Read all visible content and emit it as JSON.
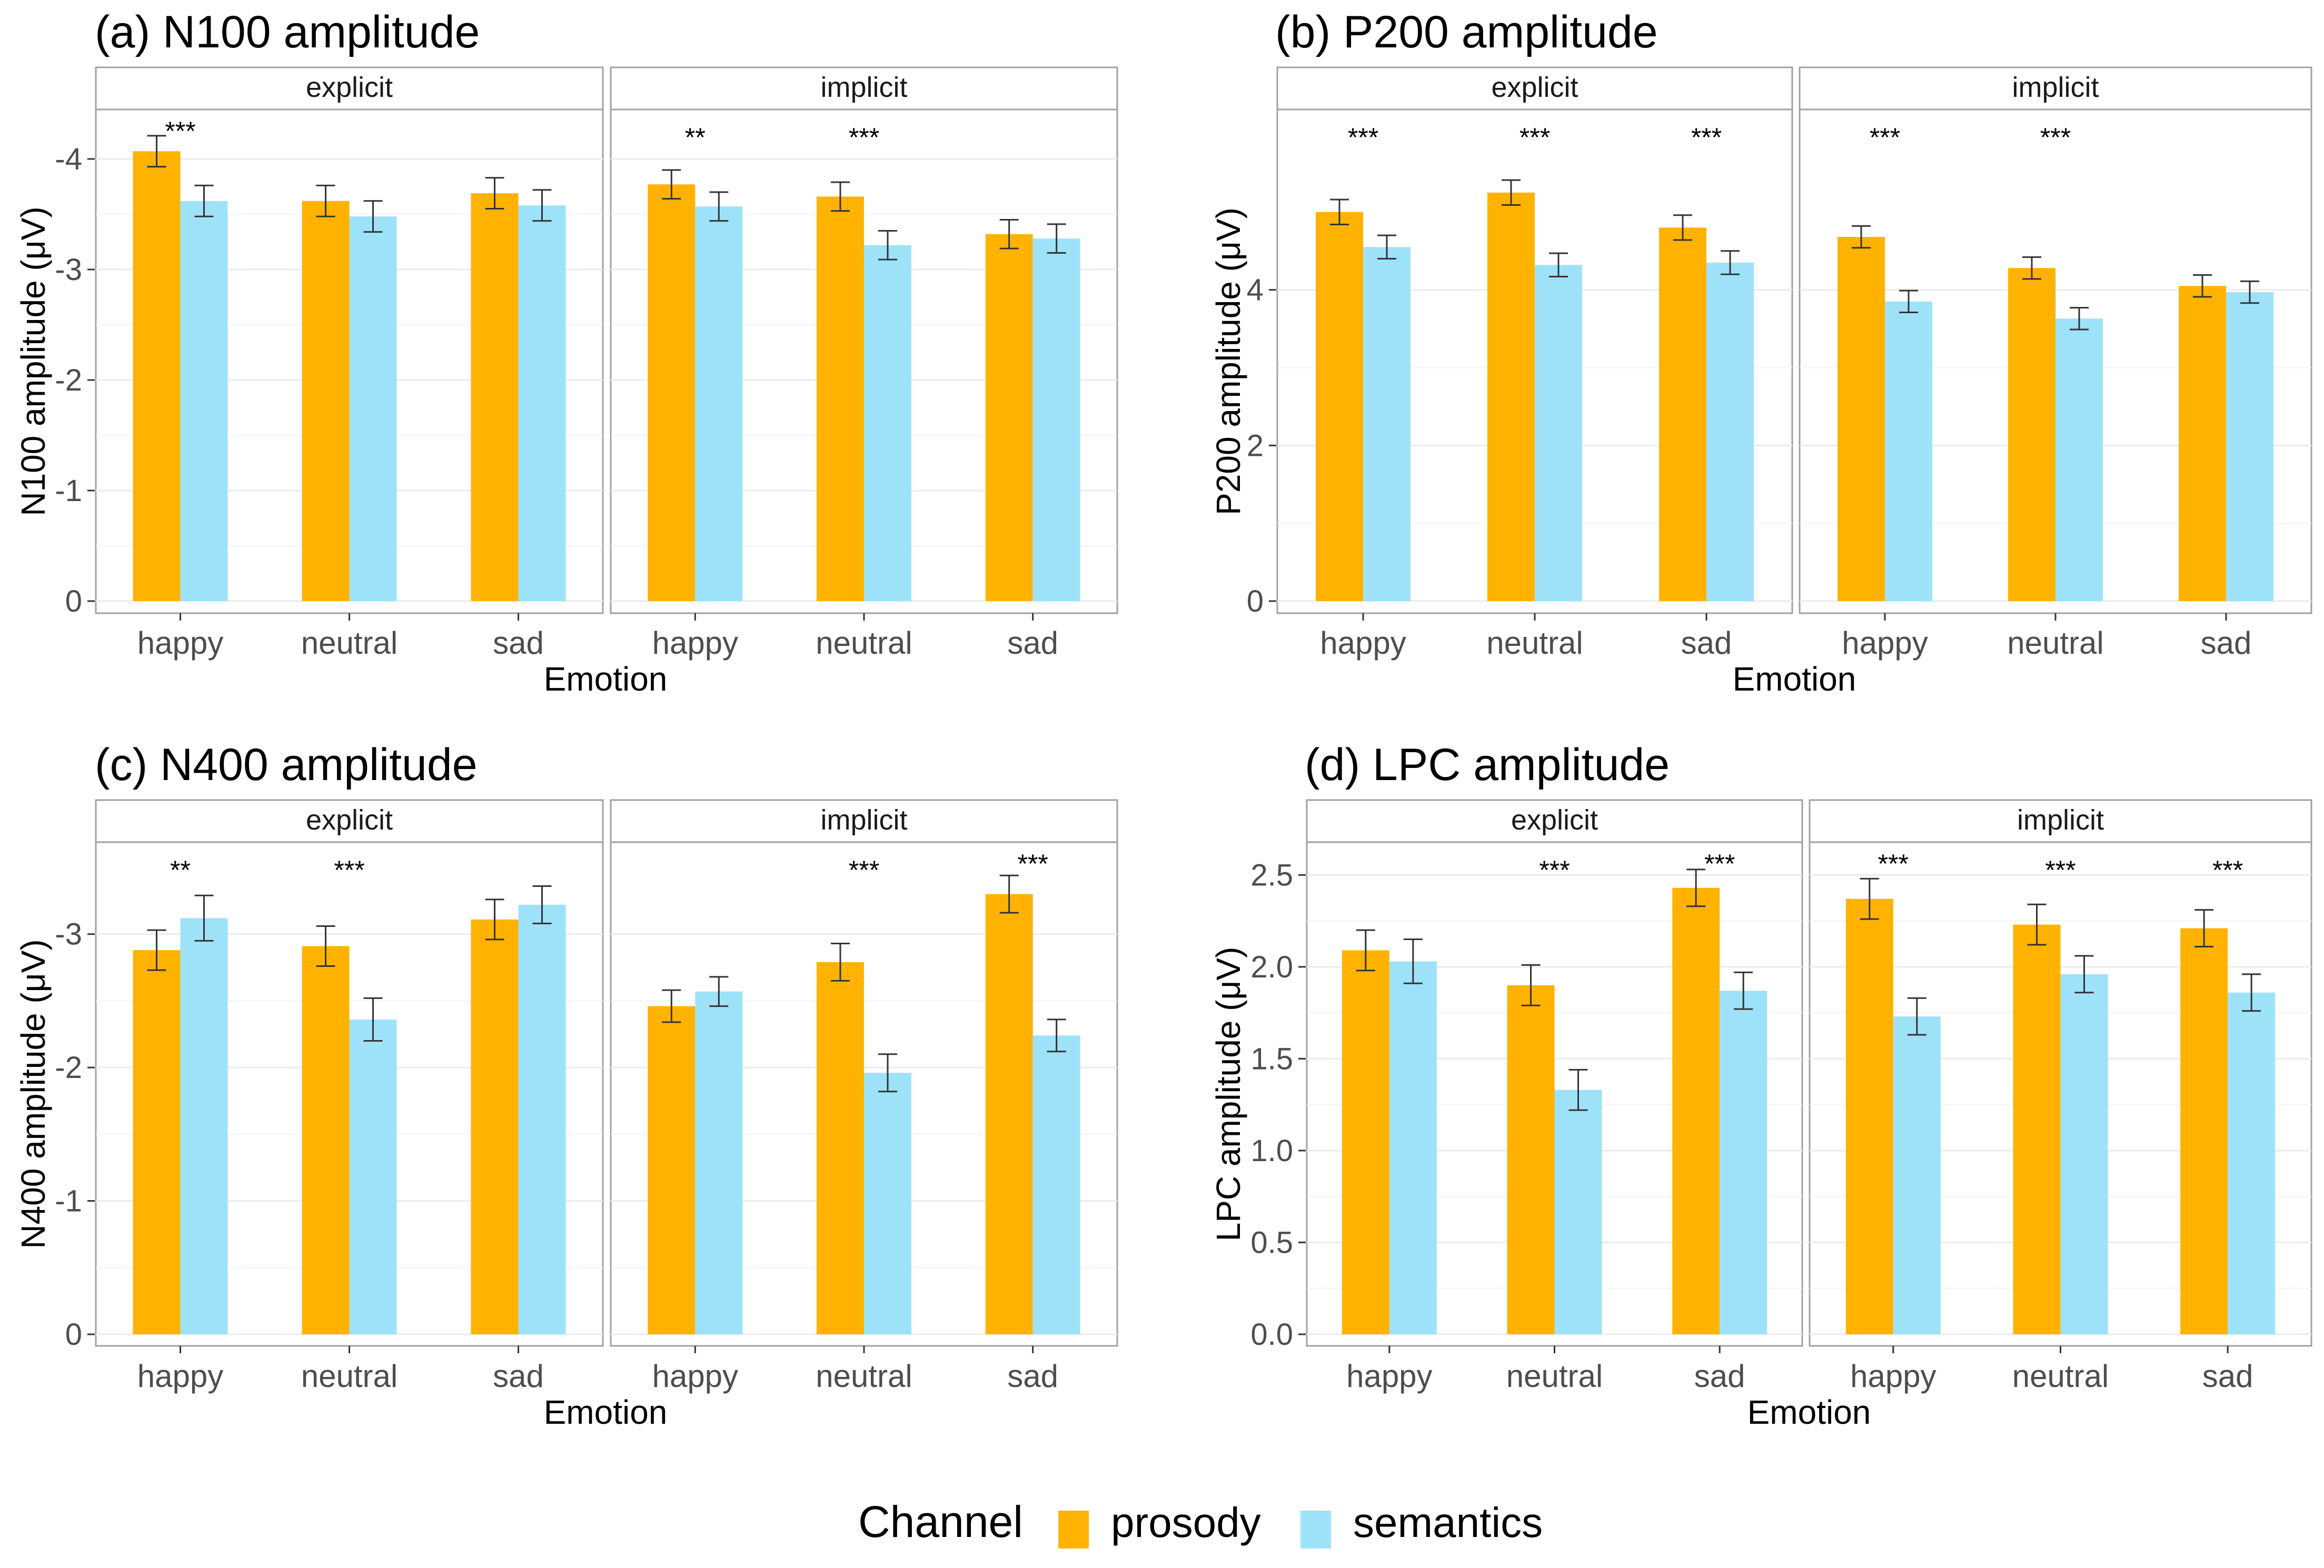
{
  "legend": {
    "title": "Channel",
    "entries": [
      {
        "name": "prosody",
        "color": "#FFB300"
      },
      {
        "name": "semantics",
        "color": "#9EE2FA"
      }
    ]
  },
  "chart_data": [
    {
      "type": "bar",
      "title": "(a) N100 amplitude",
      "xlabel": "Emotion",
      "ylabel": "N100 amplitude (μV)",
      "reversed_y": true,
      "ylim": [
        0,
        -4.4
      ],
      "yticks": [
        0,
        -1,
        -2,
        -3,
        -4
      ],
      "ytick_labels": [
        "0",
        "-1",
        "-2",
        "-3",
        "-4"
      ],
      "facets": [
        {
          "label": "explicit",
          "categories": [
            "happy",
            "neutral",
            "sad"
          ],
          "series": [
            {
              "name": "prosody",
              "values": [
                -4.07,
                -3.62,
                -3.69
              ],
              "errors": [
                0.14,
                0.14,
                0.14
              ]
            },
            {
              "name": "semantics",
              "values": [
                -3.62,
                -3.48,
                -3.58
              ],
              "errors": [
                0.14,
                0.14,
                0.14
              ]
            }
          ],
          "significance": [
            "***",
            "",
            ""
          ]
        },
        {
          "label": "implicit",
          "categories": [
            "happy",
            "neutral",
            "sad"
          ],
          "series": [
            {
              "name": "prosody",
              "values": [
                -3.77,
                -3.66,
                -3.32
              ],
              "errors": [
                0.13,
                0.13,
                0.13
              ]
            },
            {
              "name": "semantics",
              "values": [
                -3.57,
                -3.22,
                -3.28
              ],
              "errors": [
                0.13,
                0.13,
                0.13
              ]
            }
          ],
          "significance": [
            "**",
            "***",
            ""
          ]
        }
      ]
    },
    {
      "type": "bar",
      "title": "(b) P200 amplitude",
      "xlabel": "Emotion",
      "ylabel": "P200 amplitude (μV)",
      "reversed_y": false,
      "ylim": [
        0,
        6.25
      ],
      "yticks": [
        0,
        2,
        4
      ],
      "ytick_labels": [
        "0",
        "2",
        "4"
      ],
      "facets": [
        {
          "label": "explicit",
          "categories": [
            "happy",
            "neutral",
            "sad"
          ],
          "series": [
            {
              "name": "prosody",
              "values": [
                5.0,
                5.25,
                4.8
              ],
              "errors": [
                0.16,
                0.16,
                0.16
              ]
            },
            {
              "name": "semantics",
              "values": [
                4.55,
                4.32,
                4.35
              ],
              "errors": [
                0.15,
                0.15,
                0.15
              ]
            }
          ],
          "significance": [
            "***",
            "***",
            "***"
          ]
        },
        {
          "label": "implicit",
          "categories": [
            "happy",
            "neutral",
            "sad"
          ],
          "series": [
            {
              "name": "prosody",
              "values": [
                4.68,
                4.28,
                4.05
              ],
              "errors": [
                0.14,
                0.14,
                0.14
              ]
            },
            {
              "name": "semantics",
              "values": [
                3.85,
                3.63,
                3.97
              ],
              "errors": [
                0.14,
                0.14,
                0.14
              ]
            }
          ],
          "significance": [
            "***",
            "***",
            ""
          ]
        }
      ]
    },
    {
      "type": "bar",
      "title": "(c) N400 amplitude",
      "xlabel": "Emotion",
      "ylabel": "N400 amplitude (μV)",
      "reversed_y": true,
      "ylim": [
        0,
        -3.65
      ],
      "yticks": [
        0,
        -1,
        -2,
        -3
      ],
      "ytick_labels": [
        "0",
        "-1",
        "-2",
        "-3"
      ],
      "facets": [
        {
          "label": "explicit",
          "categories": [
            "happy",
            "neutral",
            "sad"
          ],
          "series": [
            {
              "name": "prosody",
              "values": [
                -2.88,
                -2.91,
                -3.11
              ],
              "errors": [
                0.15,
                0.15,
                0.15
              ]
            },
            {
              "name": "semantics",
              "values": [
                -3.12,
                -2.36,
                -3.22
              ],
              "errors": [
                0.17,
                0.16,
                0.14
              ]
            }
          ],
          "significance": [
            "**",
            "***",
            ""
          ]
        },
        {
          "label": "implicit",
          "categories": [
            "happy",
            "neutral",
            "sad"
          ],
          "series": [
            {
              "name": "prosody",
              "values": [
                -2.46,
                -2.79,
                -3.3
              ],
              "errors": [
                0.12,
                0.14,
                0.14
              ]
            },
            {
              "name": "semantics",
              "values": [
                -2.57,
                -1.96,
                -2.24
              ],
              "errors": [
                0.11,
                0.14,
                0.12
              ]
            }
          ],
          "significance": [
            "",
            "***",
            "***"
          ]
        }
      ]
    },
    {
      "type": "bar",
      "title": "(d) LPC amplitude",
      "xlabel": "Emotion",
      "ylabel": "LPC amplitude (μV)",
      "reversed_y": false,
      "ylim": [
        0,
        2.65
      ],
      "yticks": [
        0,
        0.5,
        1,
        1.5,
        2,
        2.5
      ],
      "ytick_labels": [
        "0.0",
        "0.5",
        "1.0",
        "1.5",
        "2.0",
        "2.5"
      ],
      "facets": [
        {
          "label": "explicit",
          "categories": [
            "happy",
            "neutral",
            "sad"
          ],
          "series": [
            {
              "name": "prosody",
              "values": [
                2.09,
                1.9,
                2.43
              ],
              "errors": [
                0.11,
                0.11,
                0.1
              ]
            },
            {
              "name": "semantics",
              "values": [
                2.03,
                1.33,
                1.87
              ],
              "errors": [
                0.12,
                0.11,
                0.1
              ]
            }
          ],
          "significance": [
            "",
            "***",
            "***"
          ]
        },
        {
          "label": "implicit",
          "categories": [
            "happy",
            "neutral",
            "sad"
          ],
          "series": [
            {
              "name": "prosody",
              "values": [
                2.37,
                2.23,
                2.21
              ],
              "errors": [
                0.11,
                0.11,
                0.1
              ]
            },
            {
              "name": "semantics",
              "values": [
                1.73,
                1.96,
                1.86
              ],
              "errors": [
                0.1,
                0.1,
                0.1
              ]
            }
          ],
          "significance": [
            "***",
            "***",
            "***"
          ]
        }
      ]
    }
  ]
}
